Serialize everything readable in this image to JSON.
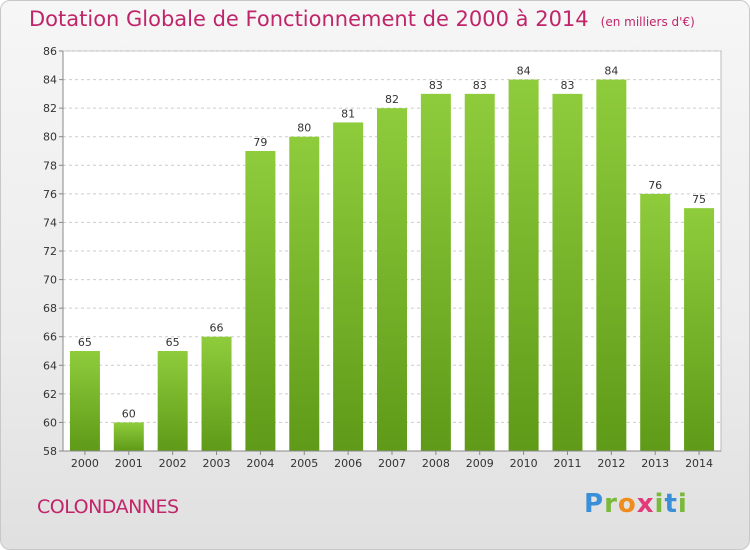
{
  "header": {
    "title": "Dotation Globale de Fonctionnement de 2000 à 2014",
    "subtitle": "(en milliers d'€)"
  },
  "footer": {
    "city": "COLONDANNES",
    "logo": "Proxiti"
  },
  "colors": {
    "bar_top": "#8fcc3c",
    "bar_bottom": "#5f9a18",
    "title": "#c0256a",
    "grid": "#cccccc"
  },
  "chart_data": {
    "type": "bar",
    "title": "Dotation Globale de Fonctionnement de 2000 à 2014",
    "subtitle": "(en milliers d'€)",
    "categories": [
      "2000",
      "2001",
      "2002",
      "2003",
      "2004",
      "2005",
      "2006",
      "2007",
      "2008",
      "2009",
      "2010",
      "2011",
      "2012",
      "2013",
      "2014"
    ],
    "values": [
      65,
      60,
      65,
      66,
      79,
      80,
      81,
      82,
      83,
      83,
      84,
      83,
      84,
      76,
      75
    ],
    "ylim": [
      58,
      86
    ],
    "yticks": [
      58,
      60,
      62,
      64,
      66,
      68,
      70,
      72,
      74,
      76,
      78,
      80,
      82,
      84,
      86
    ],
    "grid": true,
    "data_labels": true,
    "xlabel": "",
    "ylabel": ""
  }
}
